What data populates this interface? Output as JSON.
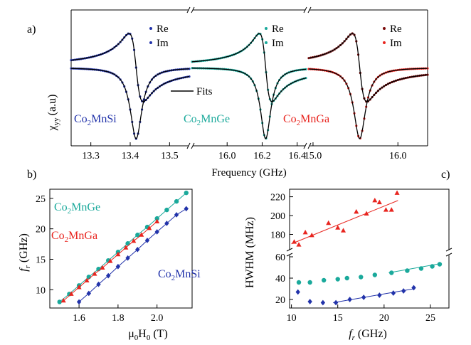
{
  "colors": {
    "CoMnSi": "#2233aa",
    "CoMnGe": "#1aa99b",
    "CoMnGa": "#e8251f",
    "CoMnGa_re": "#7a0a0a",
    "fit": "#000000"
  },
  "panel_a": {
    "label": "a)",
    "ylabel_main": "χ",
    "ylabel_sub": "yy",
    "ylabel_unit": "(a.u)",
    "xlabel": "Frequency (GHz)",
    "legend_re": "Re",
    "legend_im": "Im",
    "fits_label": "Fits",
    "materials": [
      {
        "key": "CoMnSi",
        "label_pre": "Co",
        "label_sub": "2",
        "label_post": "MnSi"
      },
      {
        "key": "CoMnGe",
        "label_pre": "Co",
        "label_sub": "2",
        "label_post": "MnGe"
      },
      {
        "key": "CoMnGa",
        "label_pre": "Co",
        "label_sub": "2",
        "label_post": "MnGa"
      }
    ]
  },
  "panel_b": {
    "label": "b)",
    "ylabel_pre": "f",
    "ylabel_sub": "r",
    "ylabel_post": " (GHz)",
    "xlabel_pre": "μ",
    "xlabel_sub1": "0",
    "xlabel_mid": "H",
    "xlabel_sub2": "0",
    "xlabel_post": " (T)",
    "series_labels": [
      {
        "key": "CoMnGe",
        "label_pre": "Co",
        "label_sub": "2",
        "label_post": "MnGe"
      },
      {
        "key": "CoMnGa",
        "label_pre": "Co",
        "label_sub": "2",
        "label_post": "MnGa"
      },
      {
        "key": "CoMnSi",
        "label_pre": "Co",
        "label_sub": "2",
        "label_post": "MnSi"
      }
    ]
  },
  "panel_c": {
    "label": "c)",
    "ylabel": "HWHM (MHz)",
    "xlabel_pre": "f",
    "xlabel_sub": "r",
    "xlabel_post": " (GHz)"
  },
  "chart_data": [
    {
      "type": "line",
      "panel": "a",
      "xlabel": "Frequency (GHz)",
      "ylabel": "χyy (a.u)",
      "subpanels": [
        {
          "material": "Co2MnSi",
          "xlim": [
            13.25,
            13.55
          ],
          "xticks": [
            "13.3",
            "13.4",
            "13.5"
          ],
          "f_res": 13.415,
          "hwhm_ghz": 0.018
        },
        {
          "material": "Co2MnGe",
          "xlim": [
            15.8,
            16.45
          ],
          "xticks": [
            "16.0",
            "16.2",
            "16.4"
          ],
          "f_res": 16.22,
          "hwhm_ghz": 0.036
        },
        {
          "material": "Co2MnGa",
          "xlim": [
            14.95,
            16.35
          ],
          "xticks": [
            "15.0",
            "16.0"
          ],
          "f_res": 15.55,
          "hwhm_ghz": 0.085
        }
      ],
      "series": [
        {
          "name": "Re"
        },
        {
          "name": "Im"
        },
        {
          "name": "Fits"
        }
      ],
      "grid": false,
      "legend": "top-right"
    },
    {
      "type": "scatter",
      "panel": "b",
      "xlabel": "μ0H0 (T)",
      "ylabel": "fr (GHz)",
      "xlim": [
        1.45,
        2.18
      ],
      "ylim": [
        7,
        26.5
      ],
      "xticks": [
        1.6,
        1.8,
        2.0
      ],
      "yticks": [
        10,
        15,
        20,
        25
      ],
      "series": [
        {
          "name": "Co2MnGe",
          "marker": "circle",
          "x": [
            1.5,
            1.55,
            1.6,
            1.65,
            1.7,
            1.75,
            1.8,
            1.85,
            1.9,
            1.95,
            2.0,
            2.05,
            2.1,
            2.15
          ],
          "y": [
            8.0,
            9.3,
            10.7,
            12.1,
            13.4,
            14.8,
            16.2,
            17.6,
            19.0,
            20.3,
            21.7,
            23.1,
            24.5,
            25.9
          ]
        },
        {
          "name": "Co2MnGa",
          "marker": "triangle",
          "x": [
            1.52,
            1.56,
            1.6,
            1.64,
            1.68,
            1.72,
            1.76,
            1.8,
            1.84,
            1.88,
            1.92,
            1.96,
            2.0
          ],
          "y": [
            8.2,
            9.3,
            10.4,
            11.5,
            12.6,
            13.6,
            14.7,
            15.8,
            16.9,
            18.0,
            19.0,
            20.1,
            21.2
          ]
        },
        {
          "name": "Co2MnSi",
          "marker": "diamond",
          "x": [
            1.6,
            1.65,
            1.7,
            1.75,
            1.8,
            1.85,
            1.9,
            1.95,
            2.0,
            2.05,
            2.1,
            2.15
          ],
          "y": [
            8.0,
            9.4,
            10.9,
            12.3,
            13.8,
            15.2,
            16.6,
            18.1,
            19.5,
            20.9,
            22.3,
            23.3
          ]
        }
      ],
      "grid": false
    },
    {
      "type": "scatter",
      "panel": "c",
      "xlabel": "fr (GHz)",
      "ylabel": "HWHM (MHz)",
      "xlim": [
        9.8,
        27
      ],
      "ylim_lower": [
        12,
        62
      ],
      "ylim_upper": [
        163,
        228
      ],
      "xticks": [
        10,
        15,
        20,
        25
      ],
      "yticks_lower": [
        20,
        40,
        60
      ],
      "yticks_upper": [
        180,
        200,
        220
      ],
      "axis_break": true,
      "series": [
        {
          "name": "Co2MnGa",
          "marker": "triangle",
          "x": [
            10.3,
            10.8,
            11.5,
            12.2,
            14.0,
            15.0,
            15.6,
            17.0,
            18.1,
            19.0,
            19.5,
            20.2,
            20.8,
            21.4
          ],
          "y": [
            172,
            169,
            182,
            179,
            192,
            187,
            184,
            204,
            202,
            216,
            214,
            206,
            206,
            224
          ]
        },
        {
          "name": "Co2MnGe",
          "marker": "circle",
          "x": [
            10.8,
            12.0,
            13.5,
            15.0,
            16.0,
            17.5,
            19.0,
            20.8,
            22.5,
            24.0,
            25.2,
            26.0
          ],
          "y": [
            36,
            36,
            38,
            39,
            40,
            41,
            43,
            45,
            47,
            49,
            51,
            53
          ]
        },
        {
          "name": "Co2MnSi",
          "marker": "diamond",
          "x": [
            10.7,
            12.0,
            13.4,
            14.8,
            16.3,
            17.8,
            19.5,
            21.0,
            22.1,
            23.2
          ],
          "y": [
            27,
            18,
            17,
            17,
            20,
            22,
            24,
            26,
            28,
            31
          ]
        }
      ],
      "fit_lines": [
        {
          "name": "Co2MnGa",
          "x": [
            10.0,
            21.5
          ],
          "y": [
            170,
            216
          ]
        },
        {
          "name": "Co2MnGe",
          "x": [
            20.5,
            26.0
          ],
          "y": [
            45,
            53.5
          ]
        },
        {
          "name": "Co2MnSi",
          "x": [
            14.5,
            23.2
          ],
          "y": [
            17,
            30
          ]
        }
      ],
      "grid": false
    }
  ]
}
